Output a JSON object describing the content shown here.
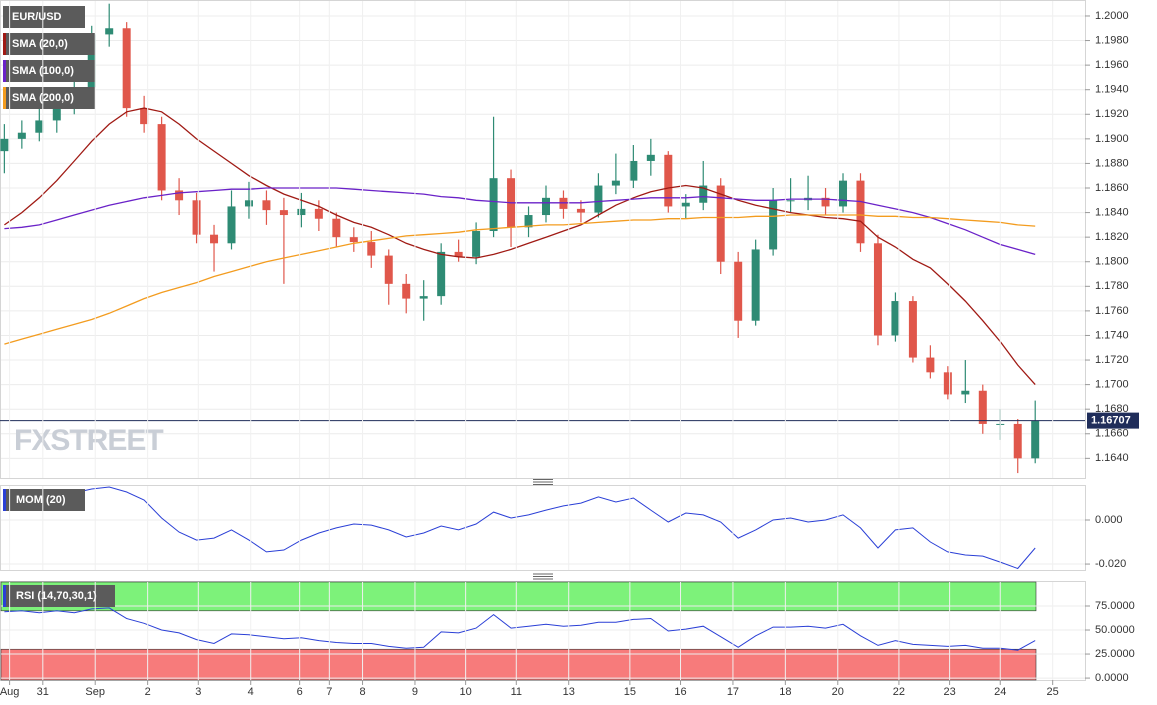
{
  "chart_data": [
    {
      "type": "candlestick",
      "title": "EUR/USD",
      "watermark": "FXSTREET",
      "up_color": "#2e8b74",
      "down_color": "#e0574b",
      "xlim": [
        -0.25,
        61.85
      ],
      "ylim": [
        1.1624,
        1.2013
      ],
      "grid": true,
      "last_price": 1.16707,
      "yticks": [
        {
          "value": 1.164,
          "label": "1.1640"
        },
        {
          "value": 1.166,
          "label": "1.1660"
        },
        {
          "value": 1.168,
          "label": "1.1680"
        },
        {
          "value": 1.17,
          "label": "1.1700"
        },
        {
          "value": 1.172,
          "label": "1.1720"
        },
        {
          "value": 1.174,
          "label": "1.1740"
        },
        {
          "value": 1.176,
          "label": "1.1760"
        },
        {
          "value": 1.178,
          "label": "1.1780"
        },
        {
          "value": 1.18,
          "label": "1.1800"
        },
        {
          "value": 1.182,
          "label": "1.1820"
        },
        {
          "value": 1.184,
          "label": "1.1840"
        },
        {
          "value": 1.186,
          "label": "1.1860"
        },
        {
          "value": 1.188,
          "label": "1.1880"
        },
        {
          "value": 1.19,
          "label": "1.1900"
        },
        {
          "value": 1.192,
          "label": "1.1920"
        },
        {
          "value": 1.194,
          "label": "1.1940"
        },
        {
          "value": 1.196,
          "label": "1.1960"
        },
        {
          "value": 1.198,
          "label": "1.1980"
        },
        {
          "value": 1.2,
          "label": "1.2000"
        }
      ],
      "candles": [
        [
          1.189,
          1.1912,
          1.1872,
          1.19
        ],
        [
          1.19,
          1.1915,
          1.1892,
          1.1905
        ],
        [
          1.1905,
          1.1925,
          1.1898,
          1.1915
        ],
        [
          1.1915,
          1.1935,
          1.1905,
          1.1928
        ],
        [
          1.1928,
          1.195,
          1.192,
          1.1942
        ],
        [
          1.1942,
          1.1992,
          1.1935,
          1.1985
        ],
        [
          1.1985,
          1.201,
          1.1975,
          1.199
        ],
        [
          1.199,
          1.1995,
          1.1918,
          1.1925
        ],
        [
          1.1925,
          1.1935,
          1.1905,
          1.1912
        ],
        [
          1.1912,
          1.1918,
          1.185,
          1.1858
        ],
        [
          1.1858,
          1.1868,
          1.1838,
          1.185
        ],
        [
          1.185,
          1.1856,
          1.1815,
          1.1822
        ],
        [
          1.1822,
          1.183,
          1.1792,
          1.1815
        ],
        [
          1.1815,
          1.1858,
          1.181,
          1.1845
        ],
        [
          1.1845,
          1.1865,
          1.1835,
          1.185
        ],
        [
          1.185,
          1.1858,
          1.183,
          1.1842
        ],
        [
          1.1842,
          1.1852,
          1.1782,
          1.1838
        ],
        [
          1.1838,
          1.1856,
          1.1828,
          1.1843
        ],
        [
          1.1843,
          1.185,
          1.1825,
          1.1835
        ],
        [
          1.1835,
          1.184,
          1.1812,
          1.182
        ],
        [
          1.182,
          1.1828,
          1.1808,
          1.1816
        ],
        [
          1.1816,
          1.1825,
          1.1795,
          1.1805
        ],
        [
          1.1805,
          1.181,
          1.1765,
          1.1782
        ],
        [
          1.1782,
          1.179,
          1.1758,
          1.177
        ],
        [
          1.177,
          1.1785,
          1.1752,
          1.1772
        ],
        [
          1.1772,
          1.1815,
          1.1765,
          1.1808
        ],
        [
          1.1808,
          1.1818,
          1.18,
          1.1804
        ],
        [
          1.1804,
          1.1832,
          1.1798,
          1.1825
        ],
        [
          1.1825,
          1.1918,
          1.182,
          1.1868
        ],
        [
          1.1868,
          1.1875,
          1.1812,
          1.1828
        ],
        [
          1.1828,
          1.1845,
          1.182,
          1.1838
        ],
        [
          1.1838,
          1.1862,
          1.1832,
          1.1852
        ],
        [
          1.1852,
          1.1858,
          1.1835,
          1.1843
        ],
        [
          1.1843,
          1.185,
          1.1832,
          1.184
        ],
        [
          1.184,
          1.1872,
          1.1836,
          1.1862
        ],
        [
          1.1862,
          1.1888,
          1.1855,
          1.1866
        ],
        [
          1.1866,
          1.1895,
          1.186,
          1.1882
        ],
        [
          1.1882,
          1.19,
          1.187,
          1.1887
        ],
        [
          1.1887,
          1.189,
          1.184,
          1.1845
        ],
        [
          1.1845,
          1.1855,
          1.1835,
          1.1848
        ],
        [
          1.1848,
          1.1882,
          1.1842,
          1.1862
        ],
        [
          1.1862,
          1.1868,
          1.179,
          1.18
        ],
        [
          1.18,
          1.1808,
          1.1738,
          1.1752
        ],
        [
          1.1752,
          1.1818,
          1.1748,
          1.181
        ],
        [
          1.181,
          1.186,
          1.1805,
          1.185
        ],
        [
          1.185,
          1.1868,
          1.184,
          1.185
        ],
        [
          1.185,
          1.187,
          1.1842,
          1.1852
        ],
        [
          1.1852,
          1.186,
          1.1838,
          1.1845
        ],
        [
          1.1845,
          1.1872,
          1.184,
          1.1866
        ],
        [
          1.1866,
          1.1872,
          1.1808,
          1.1815
        ],
        [
          1.1815,
          1.1822,
          1.1732,
          1.174
        ],
        [
          1.174,
          1.1775,
          1.1735,
          1.1768
        ],
        [
          1.1768,
          1.1772,
          1.1718,
          1.1722
        ],
        [
          1.1722,
          1.1732,
          1.1705,
          1.171
        ],
        [
          1.171,
          1.1715,
          1.1688,
          1.1692
        ],
        [
          1.1692,
          1.172,
          1.1685,
          1.1695
        ],
        [
          1.1695,
          1.17,
          1.166,
          1.1668
        ],
        [
          1.1668,
          1.168,
          1.1655,
          1.1668
        ],
        [
          1.1668,
          1.1672,
          1.1628,
          1.164
        ],
        [
          1.164,
          1.1687,
          1.1636,
          1.16707
        ]
      ],
      "series": [
        {
          "name": "SMA (20,0)",
          "color": "#a01a14",
          "values": [
            1.183,
            1.184,
            1.1852,
            1.1866,
            1.1882,
            1.1898,
            1.1912,
            1.1922,
            1.1925,
            1.1922,
            1.1912,
            1.19,
            1.189,
            1.188,
            1.187,
            1.1862,
            1.1855,
            1.185,
            1.1845,
            1.1838,
            1.1832,
            1.1828,
            1.1822,
            1.1815,
            1.181,
            1.1806,
            1.1804,
            1.1803,
            1.1806,
            1.181,
            1.1815,
            1.182,
            1.1825,
            1.183,
            1.1838,
            1.1846,
            1.1852,
            1.1857,
            1.186,
            1.1862,
            1.186,
            1.1855,
            1.185,
            1.1846,
            1.1843,
            1.184,
            1.1838,
            1.1836,
            1.1835,
            1.1833,
            1.182,
            1.1812,
            1.1802,
            1.1795,
            1.1782,
            1.1768,
            1.1752,
            1.1735,
            1.1716,
            1.17
          ]
        },
        {
          "name": "SMA (100,0)",
          "color": "#6a22c8",
          "values": [
            1.1827,
            1.1828,
            1.183,
            1.1834,
            1.1838,
            1.1842,
            1.1846,
            1.1849,
            1.1852,
            1.1854,
            1.1856,
            1.1857,
            1.1858,
            1.1859,
            1.1859,
            1.186,
            1.186,
            1.186,
            1.186,
            1.186,
            1.1859,
            1.1858,
            1.1857,
            1.1856,
            1.1855,
            1.1853,
            1.1852,
            1.185,
            1.1849,
            1.1848,
            1.1848,
            1.1848,
            1.1848,
            1.1848,
            1.1849,
            1.185,
            1.1851,
            1.1852,
            1.1852,
            1.1852,
            1.1853,
            1.1852,
            1.1851,
            1.185,
            1.185,
            1.1851,
            1.1851,
            1.1851,
            1.185,
            1.1849,
            1.1846,
            1.1843,
            1.184,
            1.1836,
            1.1831,
            1.1826,
            1.182,
            1.1814,
            1.181,
            1.1806
          ]
        },
        {
          "name": "SMA (200,0)",
          "color": "#f39c1f",
          "values": [
            1.1733,
            1.1737,
            1.1741,
            1.1745,
            1.1749,
            1.1753,
            1.1758,
            1.1764,
            1.177,
            1.1775,
            1.1779,
            1.1783,
            1.1788,
            1.1792,
            1.1796,
            1.18,
            1.1803,
            1.1806,
            1.1809,
            1.1812,
            1.1815,
            1.1817,
            1.1819,
            1.1821,
            1.1822,
            1.1823,
            1.1824,
            1.1826,
            1.1827,
            1.1828,
            1.1829,
            1.183,
            1.183,
            1.1831,
            1.1832,
            1.1833,
            1.1834,
            1.1834,
            1.1835,
            1.1835,
            1.1836,
            1.1836,
            1.1836,
            1.1837,
            1.1837,
            1.1838,
            1.1838,
            1.1838,
            1.1838,
            1.1838,
            1.1837,
            1.1837,
            1.1836,
            1.1836,
            1.1835,
            1.1834,
            1.1833,
            1.1832,
            1.183,
            1.1829
          ]
        }
      ]
    },
    {
      "type": "line",
      "title": "MOM (20)",
      "color": "#2a3fd6",
      "xlim": [
        -0.25,
        61.85
      ],
      "ylim": [
        -0.0227,
        0.0159
      ],
      "yticks": [
        {
          "value": 0,
          "label": "0.000"
        },
        {
          "value": -0.02,
          "label": "-0.020"
        }
      ],
      "values": [
        0.0114,
        0.01,
        0.0091,
        0.0105,
        0.0123,
        0.0141,
        0.015,
        0.0127,
        0.0091,
        0.0009,
        -0.0055,
        -0.0091,
        -0.0082,
        -0.0045,
        -0.0091,
        -0.0145,
        -0.0136,
        -0.0091,
        -0.0059,
        -0.0036,
        -0.0018,
        -0.0023,
        -0.0045,
        -0.0077,
        -0.0059,
        -0.0027,
        -0.0045,
        -0.0018,
        0.0036,
        0.0009,
        0.0023,
        0.0045,
        0.0064,
        0.0077,
        0.0105,
        0.0082,
        0.01,
        0.0045,
        -0.0009,
        0.0032,
        0.0023,
        -0.0009,
        -0.0082,
        -0.0045,
        0,
        0.0009,
        -0.0009,
        0,
        0.0023,
        -0.0036,
        -0.0127,
        -0.0045,
        -0.0036,
        -0.01,
        -0.0145,
        -0.0159,
        -0.0164,
        -0.0191,
        -0.022,
        -0.0127
      ]
    },
    {
      "type": "line",
      "title": "RSI (14,70,30,1)",
      "color": "#2a3fd6",
      "xlim": [
        -0.25,
        61.85
      ],
      "ylim": [
        -2,
        101
      ],
      "overbought": 70,
      "oversold": 30,
      "overbought_color": "#7df27a",
      "oversold_color": "#f77b7b",
      "yticks": [
        {
          "value": 0,
          "label": "0.0000"
        },
        {
          "value": 25,
          "label": "25.0000"
        },
        {
          "value": 50,
          "label": "50.0000"
        },
        {
          "value": 75,
          "label": "75.0000"
        }
      ],
      "values": [
        69,
        70,
        68,
        70,
        68,
        72,
        73,
        62,
        57,
        50,
        47,
        40,
        36,
        46,
        45,
        43,
        41,
        42,
        39,
        37,
        36,
        36,
        33,
        31,
        32,
        48,
        47,
        52,
        66,
        52,
        54,
        56,
        54,
        55,
        58,
        58,
        61,
        62,
        49,
        51,
        54,
        43,
        32,
        44,
        53,
        53,
        54,
        52,
        56,
        44,
        34,
        39,
        35,
        34,
        33,
        34,
        31,
        31,
        29,
        39
      ],
      "xticks": [
        {
          "value": 0.3,
          "label": "Aug"
        },
        {
          "value": 2.2,
          "label": "31"
        },
        {
          "value": 5.2,
          "label": "Sep"
        },
        {
          "value": 8.2,
          "label": "2"
        },
        {
          "value": 11.1,
          "label": "3"
        },
        {
          "value": 14.1,
          "label": "4"
        },
        {
          "value": 16.9,
          "label": "6"
        },
        {
          "value": 18.6,
          "label": "7"
        },
        {
          "value": 20.5,
          "label": "8"
        },
        {
          "value": 23.5,
          "label": "9"
        },
        {
          "value": 26.4,
          "label": "10"
        },
        {
          "value": 29.3,
          "label": "11"
        },
        {
          "value": 32.3,
          "label": "13"
        },
        {
          "value": 35.8,
          "label": "15"
        },
        {
          "value": 38.7,
          "label": "16"
        },
        {
          "value": 41.7,
          "label": "17"
        },
        {
          "value": 44.7,
          "label": "18"
        },
        {
          "value": 47.7,
          "label": "20"
        },
        {
          "value": 51.2,
          "label": "22"
        },
        {
          "value": 54.1,
          "label": "23"
        },
        {
          "value": 57.0,
          "label": "24"
        },
        {
          "value": 60.0,
          "label": "25"
        }
      ]
    }
  ]
}
